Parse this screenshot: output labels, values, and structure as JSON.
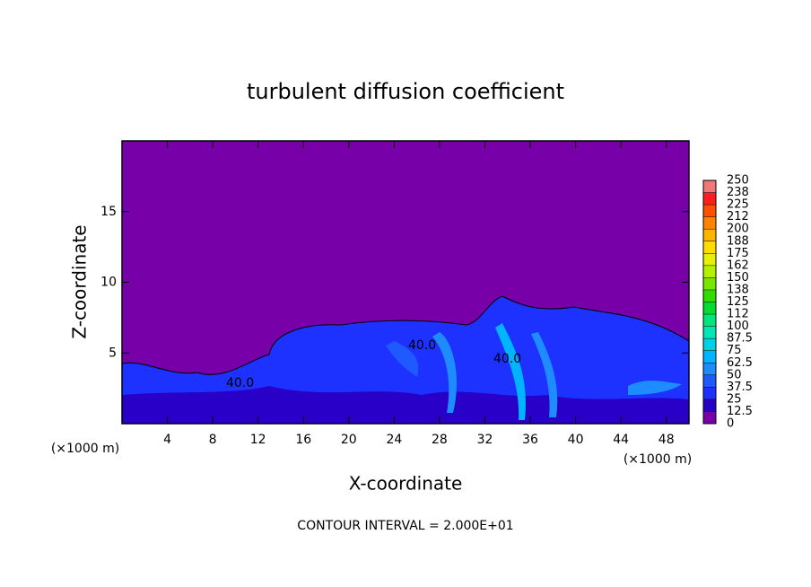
{
  "chart_data": {
    "type": "contour",
    "title": "turbulent diffusion coefficient",
    "x_label": "X-coordinate",
    "y_label": "Z-coordinate",
    "x_unit": "(×1000 m)",
    "y_unit": "(×1000 m)",
    "footnote": "CONTOUR INTERVAL = 2.000E+01",
    "contour_labels": [
      "40.0",
      "40.0",
      "40.0"
    ],
    "xlim": [
      0,
      50
    ],
    "xticks": [
      4,
      8,
      12,
      16,
      20,
      24,
      28,
      32,
      36,
      40,
      44,
      48
    ],
    "ylim": [
      0,
      20
    ],
    "yticks": [
      5,
      10,
      15
    ],
    "colorbar": {
      "ticks": [
        0,
        12.5,
        25,
        37.5,
        50,
        62.5,
        75,
        87.5,
        100,
        {
          "value": 112.5,
          "label": "112"
        },
        125,
        {
          "value": 137.5,
          "label": "138"
        },
        150,
        {
          "value": 162.5,
          "label": "162"
        },
        175,
        {
          "value": 187.5,
          "label": "188"
        },
        200,
        {
          "value": 212.5,
          "label": "212"
        },
        225,
        {
          "value": 237.5,
          "label": "238"
        },
        250
      ],
      "colors": [
        "#7800a8",
        "#2800c8",
        "#1e32ff",
        "#1e5aff",
        "#1e8cff",
        "#00b4ff",
        "#00d2e6",
        "#00e6b4",
        "#00e678",
        "#00dc32",
        "#32dc00",
        "#78e600",
        "#b4f000",
        "#e6f000",
        "#ffdc00",
        "#ffb400",
        "#ff8200",
        "#ff5000",
        "#ff1e1e",
        "#f07878"
      ]
    }
  }
}
